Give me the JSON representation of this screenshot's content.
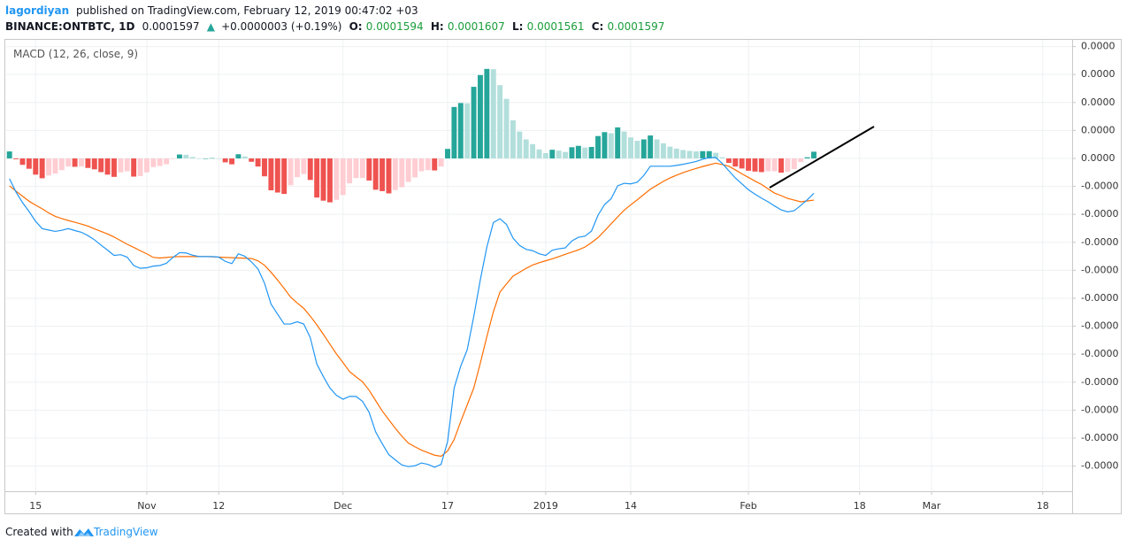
{
  "header": {
    "author": "lagordiyan",
    "published": "published on TradingView.com, February 12, 2019 00:47:02 +03"
  },
  "symbol": {
    "name": "BINANCE:ONTBTC, 1D",
    "last": "0.0001597",
    "arrow": "▲",
    "change": "+0.0000003 (+0.19%)",
    "open_label": "O:",
    "open": "0.0001594",
    "high_label": "H:",
    "high": "0.0001607",
    "low_label": "L:",
    "low": "0.0001561",
    "close_label": "C:",
    "close": "0.0001597"
  },
  "footer": {
    "created": "Created with",
    "brand": "TradingView"
  },
  "chart_data": {
    "type": "macd",
    "title": "MACD (12, 26, close, 9)",
    "categories": [
      null,
      null,
      null,
      null,
      "15",
      null,
      null,
      null,
      null,
      null,
      null,
      null,
      null,
      null,
      null,
      null,
      null,
      null,
      null,
      null,
      null,
      "Nov",
      null,
      null,
      null,
      null,
      null,
      null,
      null,
      null,
      null,
      null,
      "12",
      null,
      null,
      null,
      null,
      null,
      null,
      null,
      null,
      null,
      null,
      null,
      null,
      null,
      null,
      null,
      null,
      null,
      null,
      "Dec",
      null,
      null,
      null,
      null,
      null,
      null,
      null,
      null,
      null,
      null,
      null,
      null,
      null,
      null,
      null,
      "17",
      null,
      null,
      null,
      null,
      null,
      null,
      null,
      null,
      null,
      null,
      null,
      null,
      null,
      null,
      "2019",
      null,
      null,
      null,
      null,
      null,
      null,
      null,
      null,
      null,
      null,
      null,
      null,
      "14",
      null,
      null,
      null,
      null,
      null,
      null,
      null,
      null,
      null,
      null,
      null,
      null,
      null,
      null,
      null,
      null,
      null,
      "Feb",
      null,
      null,
      null,
      null,
      null,
      null,
      null,
      null,
      null,
      null,
      null,
      null,
      null,
      null,
      null,
      null,
      "18",
      null,
      null,
      null,
      null,
      null,
      null,
      null,
      null,
      null,
      null,
      "Mar",
      null,
      null,
      null,
      null,
      null,
      null,
      null,
      null,
      null,
      null,
      null,
      null,
      null,
      null,
      null,
      null,
      "18",
      null,
      null,
      null,
      null
    ],
    "histogram": {
      "colors": [
        "#26a69a",
        "#b2dfdb",
        "#ffcdd2",
        "#ef5350"
      ],
      "values": [
        2.5e-08,
        -3e-09,
        -2.3e-08,
        -3.7e-08,
        -5.8e-08,
        -7.1e-08,
        -6.1e-08,
        -5.4e-08,
        -4.2e-08,
        -2.9e-08,
        -3e-08,
        -2.9e-08,
        -3.4e-08,
        -3.9e-08,
        -4.9e-08,
        -5.8e-08,
        -6.6e-08,
        -5e-08,
        -4.6e-08,
        -6.5e-08,
        -6.3e-08,
        -5e-08,
        -3.1e-08,
        -2.7e-08,
        -2.1e-08,
        -2e-09,
        1.4e-08,
        1.3e-08,
        5e-09,
        0,
        0,
        1e-09,
        0,
        -1.4e-08,
        -2.1e-08,
        1.5e-08,
        7e-09,
        -1.2e-08,
        -2.9e-08,
        -6.4e-08,
        -1.14e-07,
        -1.22e-07,
        -1.27e-07,
        -9.6e-08,
        -6.7e-08,
        -5.6e-08,
        -7.7e-08,
        -1.4e-07,
        -1.51e-07,
        -1.57e-07,
        -1.48e-07,
        -1.31e-07,
        -8.9e-08,
        -7e-08,
        -7e-08,
        -7.9e-08,
        -1.12e-07,
        -1.17e-07,
        -1.25e-07,
        -1.13e-07,
        -1.03e-07,
        -8.4e-08,
        -6.8e-08,
        -4.6e-08,
        -4.2e-08,
        -4.3e-08,
        -2.9e-08,
        3.4e-08,
        1.84e-07,
        1.98e-07,
        1.97e-07,
        2.56e-07,
        2.98e-07,
        3.2e-07,
        3.19e-07,
        2.62e-07,
        2.13e-07,
        1.36e-07,
        9.6e-08,
        6.8e-08,
        5.1e-08,
        3.2e-08,
        1.9e-08,
        3.1e-08,
        2.8e-08,
        2.3e-08,
        4e-08,
        4.5e-08,
        3.9e-08,
        4.1e-08,
        8e-08,
        9.4e-08,
        9e-08,
        1.11e-07,
        9.6e-08,
        7.5e-08,
        6.3e-08,
        6.8e-08,
        8.2e-08,
        6.8e-08,
        5.4e-08,
        4.2e-08,
        3.5e-08,
        3e-08,
        2.7e-08,
        2.5e-08,
        2.6e-08,
        2.6e-08,
        2e-08,
        4e-09,
        -1.6e-08,
        -2.9e-08,
        -3.6e-08,
        -4.4e-08,
        -4.7e-08,
        -4.9e-08,
        -4.6e-08,
        -4.6e-08,
        -5.1e-08,
        -4.8e-08,
        -3.8e-08,
        -1.3e-08,
        4e-09,
        2.4e-08,
        null,
        null,
        null,
        null,
        null,
        null,
        null,
        null,
        null,
        null,
        null,
        null,
        null,
        null,
        null,
        null,
        null,
        null,
        null,
        null,
        null,
        null,
        null,
        null,
        null,
        null,
        null,
        null,
        null,
        null,
        null,
        null,
        null,
        null,
        null,
        null,
        null,
        null,
        null
      ]
    },
    "macd": {
      "color": "#2196f3",
      "values": [
        -7.3e-08,
        -1.2e-07,
        -1.58e-07,
        -1.9e-07,
        -2.25e-07,
        -2.51e-07,
        -2.56e-07,
        -2.61e-07,
        -2.57e-07,
        -2.51e-07,
        -2.58e-07,
        -2.64e-07,
        -2.76e-07,
        -2.91e-07,
        -3.1e-07,
        -3.28e-07,
        -3.47e-07,
        -3.44e-07,
        -3.53e-07,
        -3.83e-07,
        -3.93e-07,
        -3.91e-07,
        -3.85e-07,
        -3.83e-07,
        -3.75e-07,
        -3.54e-07,
        -3.37e-07,
        -3.38e-07,
        -3.46e-07,
        -3.51e-07,
        -3.51e-07,
        -3.51e-07,
        -3.53e-07,
        -3.68e-07,
        -3.76e-07,
        -3.41e-07,
        -3.5e-07,
        -3.7e-07,
        -3.95e-07,
        -4.46e-07,
        -5.21e-07,
        -5.57e-07,
        -5.92e-07,
        -5.92e-07,
        -5.84e-07,
        -5.92e-07,
        -6.41e-07,
        -7.35e-07,
        -7.8e-07,
        -8.21e-07,
        -8.47e-07,
        -8.61e-07,
        -8.51e-07,
        -8.51e-07,
        -8.69e-07,
        -9.08e-07,
        -9.78e-07,
        -1.02e-06,
        -1.059e-06,
        -1.078e-06,
        -1.096e-06,
        -1.102e-06,
        -1.099e-06,
        -1.089e-06,
        -1.094e-06,
        -1.104e-06,
        -1.094e-06,
        -1.012e-06,
        -8.21e-07,
        -7.43e-07,
        -6.84e-07,
        -5.65e-07,
        -4.34e-07,
        -3.17e-07,
        -2.29e-07,
        -2.16e-07,
        -2.36e-07,
        -2.85e-07,
        -3.11e-07,
        -3.25e-07,
        -3.3e-07,
        -3.41e-07,
        -3.47e-07,
        -3.28e-07,
        -3.23e-07,
        -3.2e-07,
        -2.95e-07,
        -2.82e-07,
        -2.78e-07,
        -2.6e-07,
        -2.03e-07,
        -1.65e-07,
        -1.44e-07,
        -9.8e-08,
        -8.9e-08,
        -9.1e-08,
        -8.5e-08,
        -6.1e-08,
        -2.8e-08,
        -2.8e-08,
        -2.8e-08,
        -2.8e-08,
        -2.5e-08,
        -2.1e-08,
        -1.6e-08,
        -1.1e-08,
        -3e-09,
        3e-09,
        3e-09,
        -1.8e-08,
        -4.4e-08,
        -7e-08,
        -9.1e-08,
        -1.12e-07,
        -1.28e-07,
        -1.42e-07,
        -1.55e-07,
        -1.7e-07,
        -1.84e-07,
        -1.91e-07,
        -1.87e-07,
        -1.68e-07,
        -1.48e-07,
        -1.25e-07,
        null,
        null,
        null,
        null,
        null,
        null,
        null,
        null,
        null,
        null,
        null,
        null,
        null,
        null,
        null,
        null,
        null,
        null,
        null,
        null,
        null,
        null,
        null,
        null,
        null,
        null,
        null,
        null,
        null,
        null,
        null,
        null,
        null,
        null,
        null,
        null,
        null,
        null,
        null
      ]
    },
    "signal": {
      "color": "#ff6d00",
      "values": [
        -9.8e-08,
        -1.17e-07,
        -1.35e-07,
        -1.53e-07,
        -1.67e-07,
        -1.8e-07,
        -1.95e-07,
        -2.07e-07,
        -2.15e-07,
        -2.22e-07,
        -2.28e-07,
        -2.35e-07,
        -2.42e-07,
        -2.52e-07,
        -2.61e-07,
        -2.7e-07,
        -2.81e-07,
        -2.94e-07,
        -3.07e-07,
        -3.18e-07,
        -3.3e-07,
        -3.41e-07,
        -3.54e-07,
        -3.56e-07,
        -3.54e-07,
        -3.52e-07,
        -3.51e-07,
        -3.51e-07,
        -3.51e-07,
        -3.51e-07,
        -3.51e-07,
        -3.52e-07,
        -3.53e-07,
        -3.54e-07,
        -3.55e-07,
        -3.56e-07,
        -3.57e-07,
        -3.58e-07,
        -3.66e-07,
        -3.82e-07,
        -4.07e-07,
        -4.35e-07,
        -4.65e-07,
        -4.96e-07,
        -5.17e-07,
        -5.36e-07,
        -5.64e-07,
        -5.95e-07,
        -6.29e-07,
        -6.64e-07,
        -6.99e-07,
        -7.3e-07,
        -7.62e-07,
        -7.81e-07,
        -7.99e-07,
        -8.29e-07,
        -8.66e-07,
        -9.03e-07,
        -9.34e-07,
        -9.65e-07,
        -9.93e-07,
        -1.018e-06,
        -1.031e-06,
        -1.043e-06,
        -1.052e-06,
        -1.061e-06,
        -1.065e-06,
        -1.046e-06,
        -1.005e-06,
        -9.41e-07,
        -8.81e-07,
        -8.21e-07,
        -7.32e-07,
        -6.37e-07,
        -5.48e-07,
        -4.78e-07,
        -4.49e-07,
        -4.21e-07,
        -4.07e-07,
        -3.93e-07,
        -3.81e-07,
        -3.73e-07,
        -3.66e-07,
        -3.59e-07,
        -3.51e-07,
        -3.43e-07,
        -3.35e-07,
        -3.27e-07,
        -3.17e-07,
        -3.01e-07,
        -2.83e-07,
        -2.59e-07,
        -2.34e-07,
        -2.09e-07,
        -1.85e-07,
        -1.66e-07,
        -1.48e-07,
        -1.29e-07,
        -1.1e-07,
        -9.6e-08,
        -8.2e-08,
        -7e-08,
        -6e-08,
        -5.1e-08,
        -4.3e-08,
        -3.6e-08,
        -2.9e-08,
        -2.3e-08,
        -1.7e-08,
        -2.2e-08,
        -2.8e-08,
        -4.1e-08,
        -5.5e-08,
        -6.8e-08,
        -8.1e-08,
        -9.3e-08,
        -1.09e-07,
        -1.24e-07,
        -1.33e-07,
        -1.43e-07,
        -1.49e-07,
        -1.55e-07,
        -1.52e-07,
        -1.49e-07,
        null,
        null,
        null,
        null,
        null,
        null,
        null,
        null,
        null,
        null,
        null,
        null,
        null,
        null,
        null,
        null,
        null,
        null,
        null,
        null,
        null,
        null,
        null,
        null,
        null,
        null,
        null,
        null,
        null,
        null,
        null,
        null,
        null,
        null,
        null,
        null,
        null,
        null,
        null
      ]
    },
    "ylim": [
      -1.19e-06,
      4.24e-07
    ],
    "yticks": [
      {
        "value": 4e-07,
        "label": "0.0000"
      },
      {
        "value": 3e-07,
        "label": "0.0000"
      },
      {
        "value": 2e-07,
        "label": "0.0000"
      },
      {
        "value": 1e-07,
        "label": "0.0000"
      },
      {
        "value": 0,
        "label": "0.0000"
      },
      {
        "value": -1e-07,
        "label": "-0.0000"
      },
      {
        "value": -2e-07,
        "label": "-0.0000"
      },
      {
        "value": -3e-07,
        "label": "-0.0000"
      },
      {
        "value": -4e-07,
        "label": "-0.0000"
      },
      {
        "value": -5e-07,
        "label": "-0.0000"
      },
      {
        "value": -6e-07,
        "label": "-0.0000"
      },
      {
        "value": -7e-07,
        "label": "-0.0000"
      },
      {
        "value": -8e-07,
        "label": "-0.0000"
      },
      {
        "value": -9e-07,
        "label": "-0.0000"
      },
      {
        "value": -1e-06,
        "label": "-0.0000"
      },
      {
        "value": -1.1e-06,
        "label": "-0.0000"
      }
    ],
    "grid": true
  }
}
